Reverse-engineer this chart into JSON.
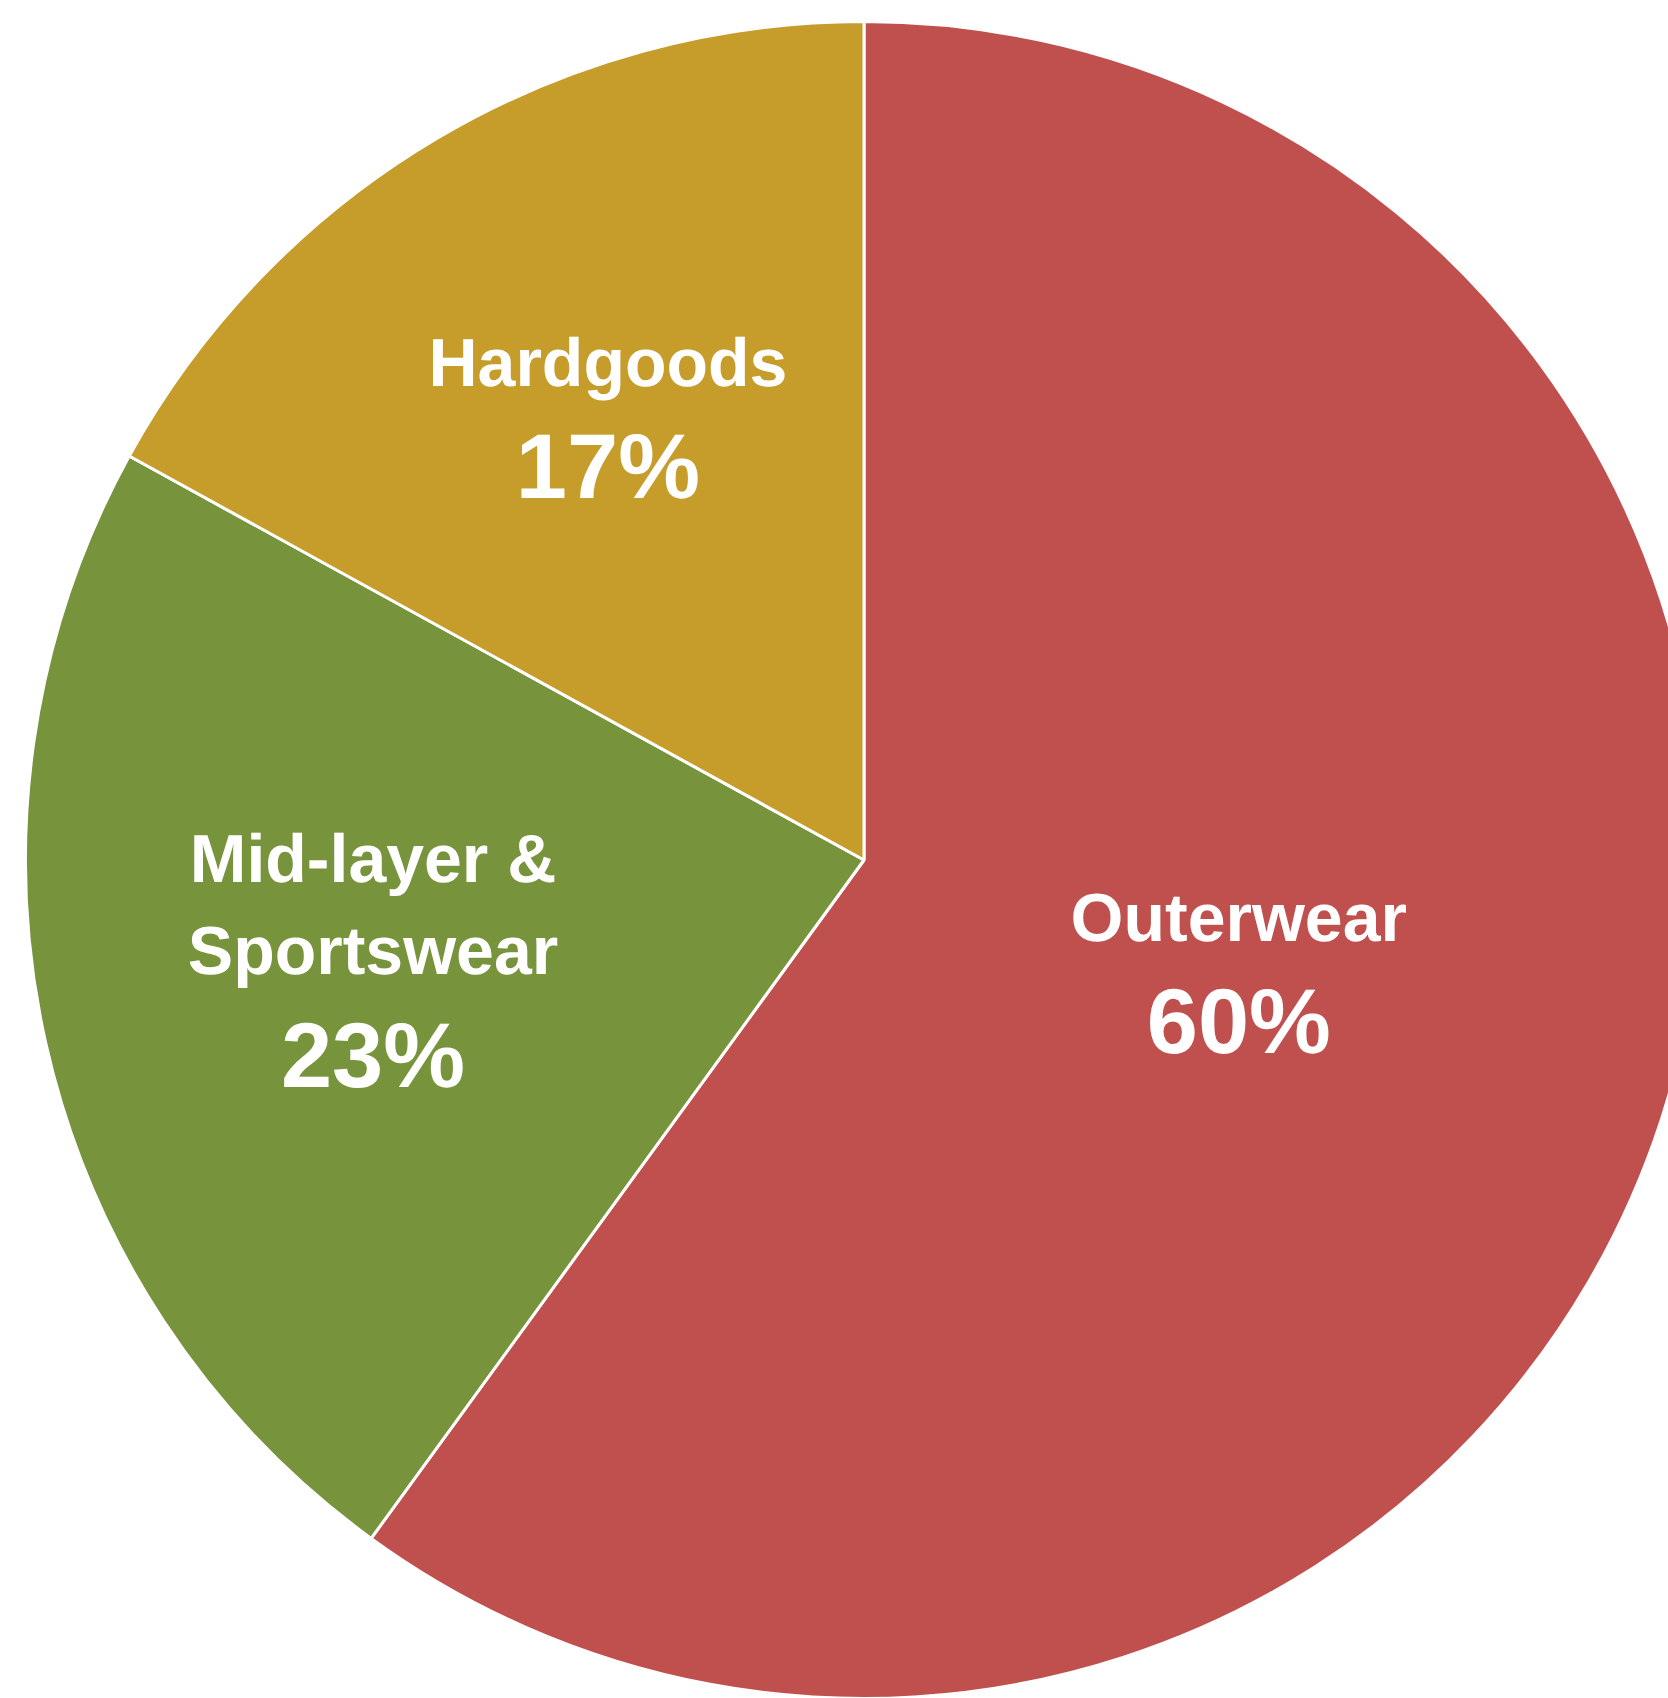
{
  "chart_data": {
    "type": "pie",
    "categories": [
      "Outerwear",
      "Mid-layer & Sportswear",
      "Hardgoods"
    ],
    "values": [
      60,
      23,
      17
    ],
    "colors": [
      "#c0504d",
      "#77933c",
      "#c69c2b"
    ],
    "value_labels": [
      "60%",
      "23%",
      "17%"
    ],
    "legend": false
  }
}
